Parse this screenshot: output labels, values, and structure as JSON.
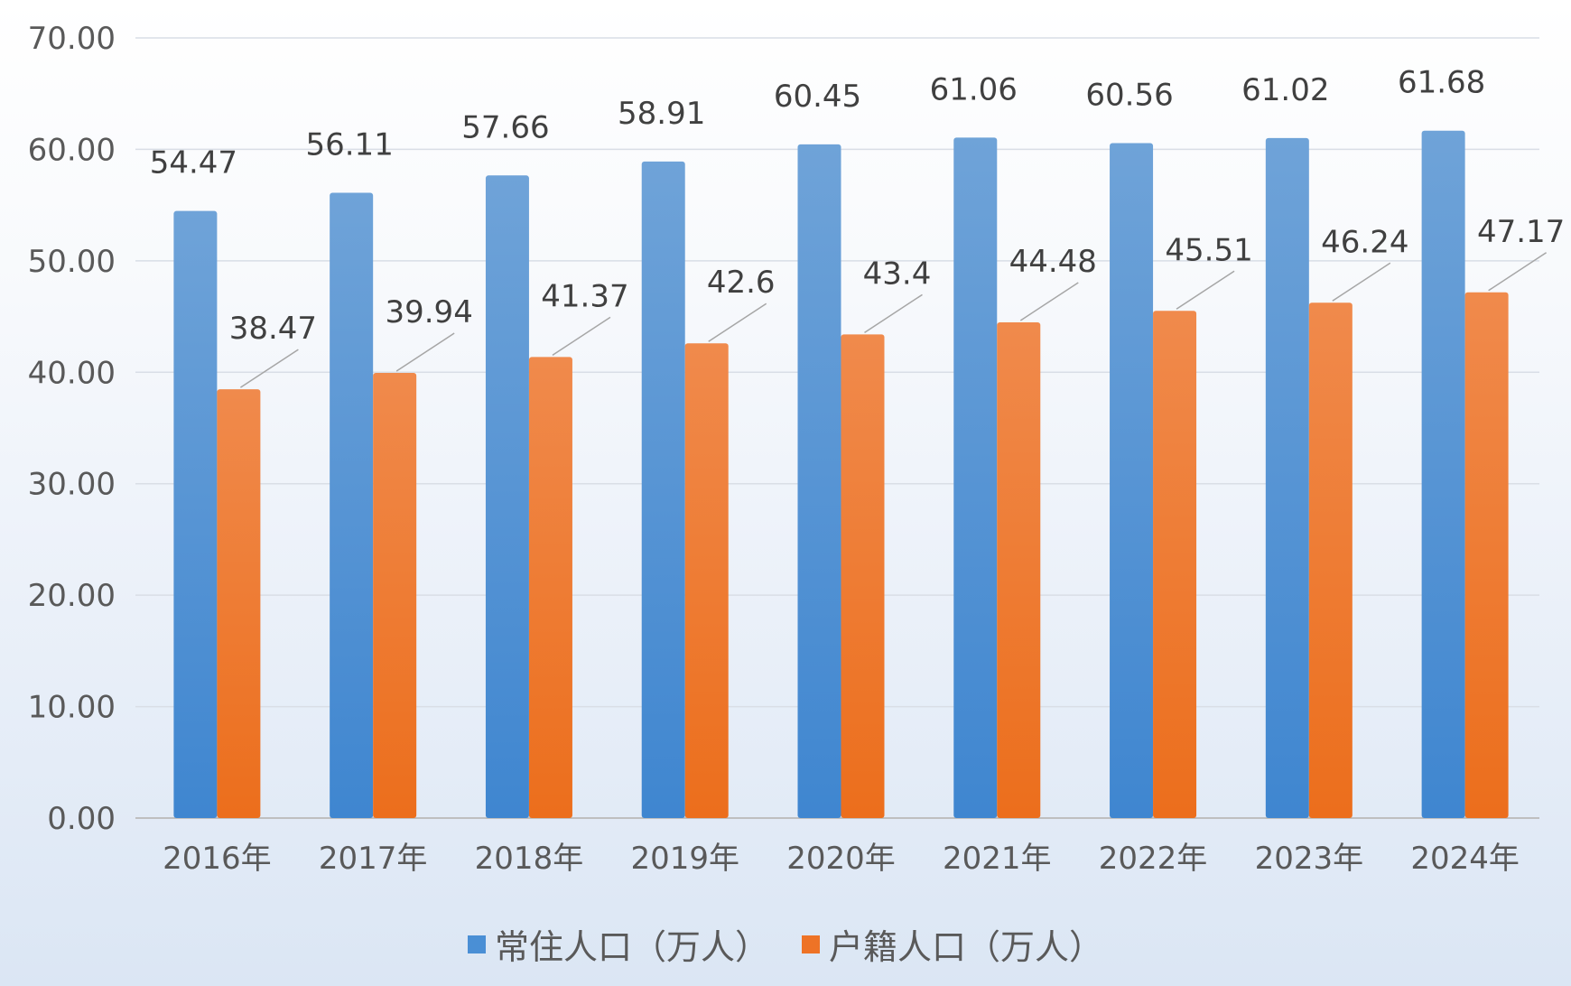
{
  "chart_data": {
    "type": "bar",
    "categories": [
      "2016年",
      "2017年",
      "2018年",
      "2019年",
      "2020年",
      "2021年",
      "2022年",
      "2023年",
      "2024年"
    ],
    "series": [
      {
        "name": "常住人口（万人）",
        "color": "#5b9bd5",
        "values": [
          54.47,
          56.11,
          57.66,
          58.91,
          60.45,
          61.06,
          60.56,
          61.02,
          61.68
        ],
        "labels": [
          "54.47",
          "56.11",
          "57.66",
          "58.91",
          "60.45",
          "61.06",
          "60.56",
          "61.02",
          "61.68"
        ]
      },
      {
        "name": "户籍人口（万人）",
        "color": "#ed7d31",
        "values": [
          38.47,
          39.94,
          41.37,
          42.6,
          43.4,
          44.48,
          45.51,
          46.24,
          47.17
        ],
        "labels": [
          "38.47",
          "39.94",
          "41.37",
          "42.6",
          "43.4",
          "44.48",
          "45.51",
          "46.24",
          "47.17"
        ]
      }
    ],
    "ylim": [
      0,
      70
    ],
    "yticks": [
      "0.00",
      "10.00",
      "20.00",
      "30.00",
      "40.00",
      "50.00",
      "60.00",
      "70.00"
    ],
    "grid": true,
    "legend_position": "bottom"
  }
}
